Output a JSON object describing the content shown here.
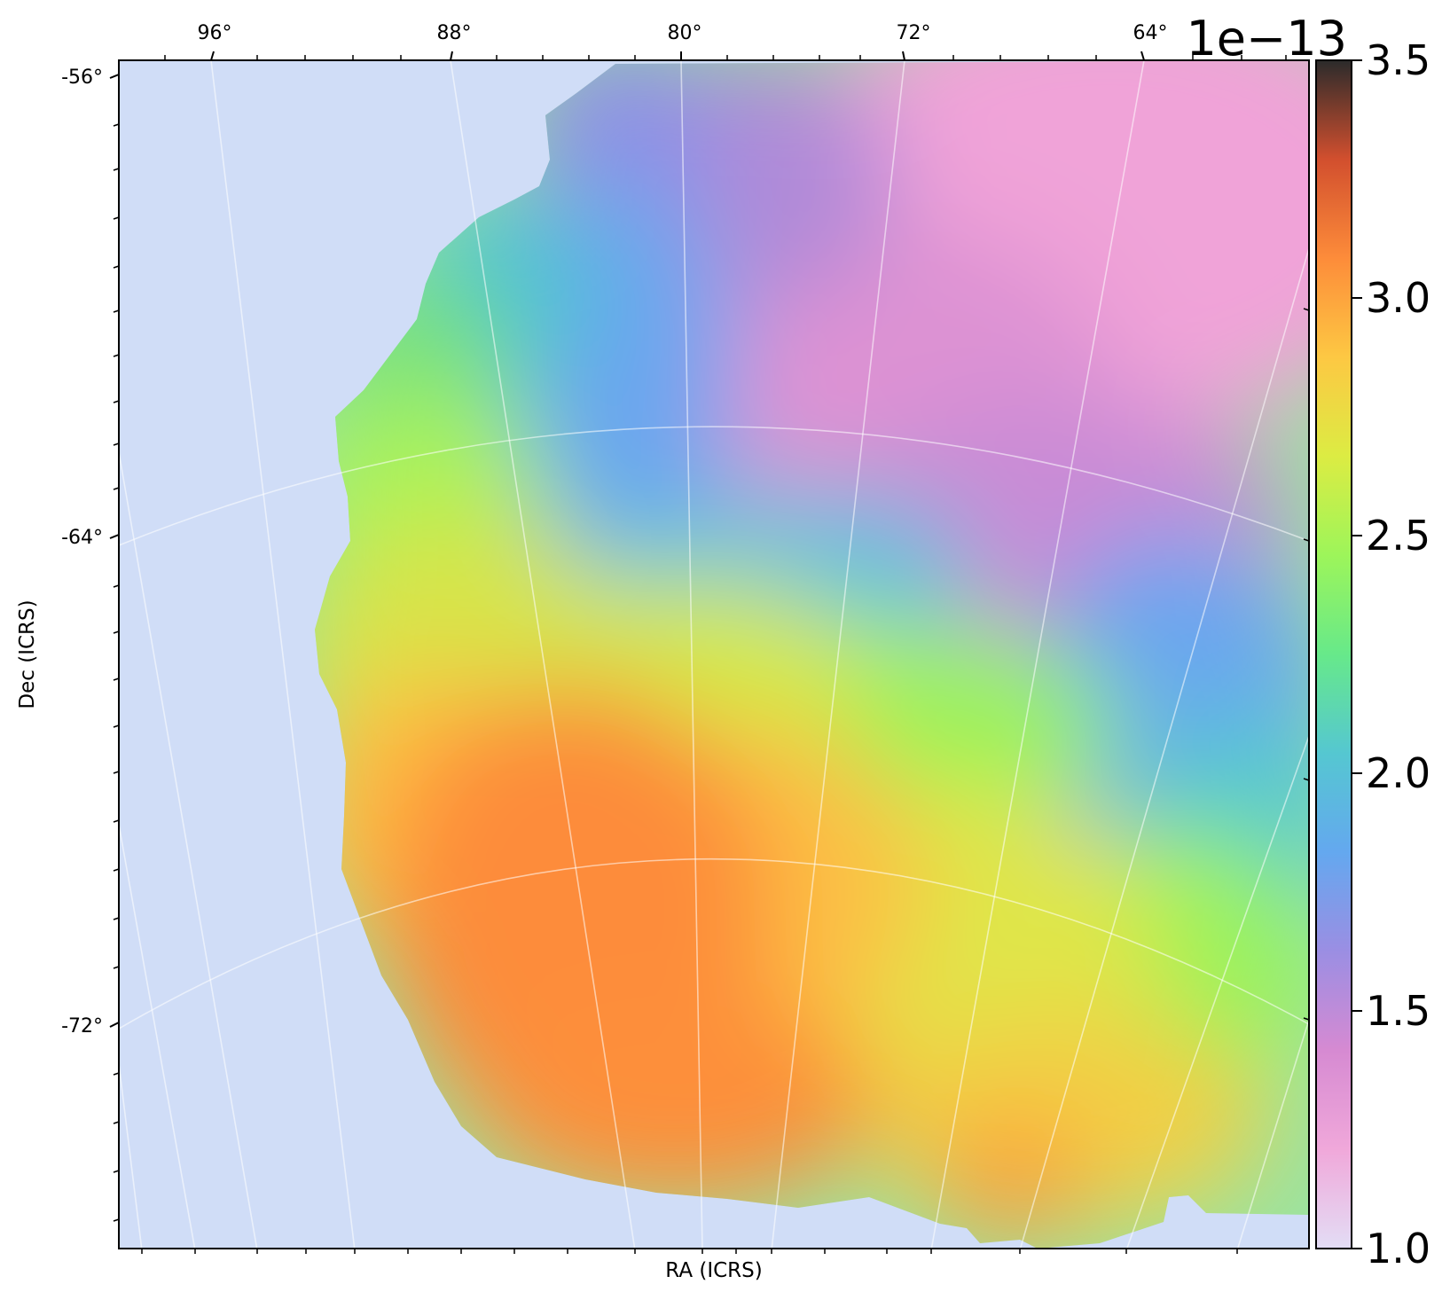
{
  "chart_data": {
    "type": "heatmap",
    "projection": "sky map (RA/Dec, ICRS)",
    "xlabel": "RA (ICRS)",
    "ylabel": "Dec (ICRS)",
    "ra_ticks": [
      {
        "value": 96,
        "label": "96°"
      },
      {
        "value": 88,
        "label": "88°"
      },
      {
        "value": 80,
        "label": "80°"
      },
      {
        "value": 72,
        "label": "72°"
      },
      {
        "value": 64,
        "label": "64°"
      }
    ],
    "dec_ticks": [
      {
        "value": -56,
        "label": "-56°"
      },
      {
        "value": -64,
        "label": "-64°"
      },
      {
        "value": -72,
        "label": "-72°"
      }
    ],
    "colorbar": {
      "min": 1.0,
      "max": 3.5,
      "exponent_label": "1e−13",
      "colormap": [
        "#e3ddf5",
        "#f0a8da",
        "#d68ad2",
        "#9b8ee3",
        "#64a8ef",
        "#55c7d1",
        "#67e98a",
        "#9df55a",
        "#dcec43",
        "#fdc843",
        "#fd8c3a",
        "#d24f2e",
        "#2b2b2b"
      ],
      "ticks": [
        {
          "value": 1.0,
          "label": "1.0"
        },
        {
          "value": 1.5,
          "label": "1.5"
        },
        {
          "value": 2.0,
          "label": "2.0"
        },
        {
          "value": 2.5,
          "label": "2.5"
        },
        {
          "value": 3.0,
          "label": "3.0"
        },
        {
          "value": 3.5,
          "label": "3.5"
        }
      ]
    },
    "nodata_color": "#d0ddf7",
    "grid": true,
    "field_values": [
      {
        "region": "north-east (top right)",
        "value": 1.2
      },
      {
        "region": "north-centre (top)",
        "value": 1.45
      },
      {
        "region": "north-west edge",
        "value": 1.8
      },
      {
        "region": "centre band",
        "value": 2.1
      },
      {
        "region": "south-west",
        "value": 2.55
      },
      {
        "region": "south-centre",
        "value": 2.65
      },
      {
        "region": "east (right middle)",
        "value": 1.6
      },
      {
        "region": "south-east",
        "value": 2.3
      }
    ]
  }
}
